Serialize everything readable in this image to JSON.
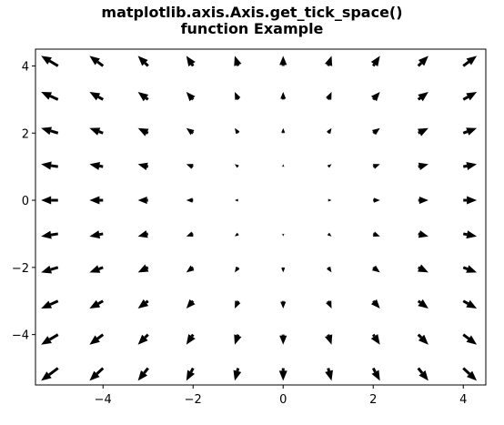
{
  "chart_data": {
    "type": "quiver",
    "title_lines": [
      "matplotlib.axis.Axis.get_tick_space()",
      "function Example"
    ],
    "xlabel": "",
    "ylabel": "",
    "xlim": [
      -5.5,
      4.5
    ],
    "ylim": [
      -5.5,
      4.5
    ],
    "grid": false,
    "x_ticks": [
      -4,
      -2,
      0,
      2,
      4
    ],
    "y_ticks": [
      -4,
      -2,
      0,
      2,
      4
    ],
    "x_tick_labels": [
      "−4",
      "−2",
      "0",
      "2",
      "4"
    ],
    "y_tick_labels": [
      "−4",
      "−2",
      "0",
      "2",
      "4"
    ],
    "grid_points": {
      "x": [
        -5,
        -4,
        -3,
        -2,
        -1,
        0,
        1,
        2,
        3,
        4
      ],
      "y": [
        -5,
        -4,
        -3,
        -2,
        -1,
        0,
        1,
        2,
        3,
        4
      ]
    },
    "vector_field": {
      "u": "x",
      "v": "y"
    },
    "arrow_color": "#000000"
  }
}
